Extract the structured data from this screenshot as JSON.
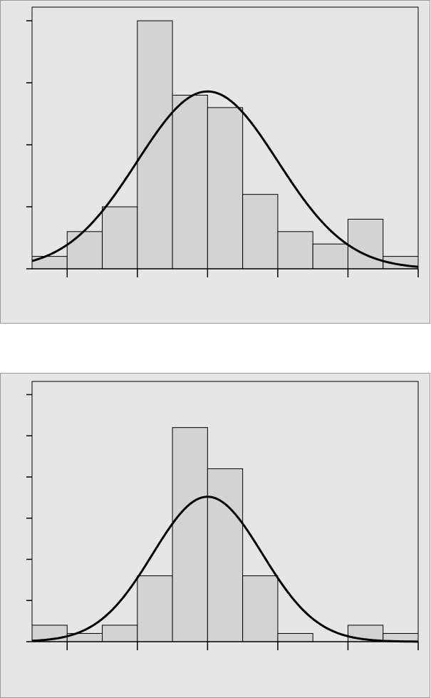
{
  "chart_data": [
    {
      "type": "histogram",
      "bins": [
        0,
        1,
        2,
        3,
        4,
        5,
        6,
        7,
        8,
        9,
        10,
        11
      ],
      "counts": [
        1,
        3,
        5,
        20,
        14,
        13,
        6,
        3,
        2,
        4,
        1
      ],
      "xlim": [
        0,
        11
      ],
      "xticks": [
        1,
        3,
        5,
        7,
        9,
        11
      ],
      "ylim": [
        0,
        21.1
      ],
      "yticks": [
        0,
        5,
        10,
        15,
        20
      ],
      "color": "#d3d3d3",
      "curve": {
        "mean": 5,
        "sd": 2,
        "peak": 14.3
      }
    },
    {
      "type": "histogram",
      "bins": [
        0,
        1,
        2,
        3,
        4,
        5,
        6,
        7,
        8,
        9,
        10,
        11
      ],
      "counts": [
        2,
        1,
        2,
        8,
        26,
        21,
        8,
        1,
        0,
        2,
        1
      ],
      "xlim": [
        0,
        11
      ],
      "xticks": [
        1,
        3,
        5,
        7,
        9,
        11
      ],
      "ylim": [
        0,
        31.6
      ],
      "yticks": [
        0,
        5,
        10,
        15,
        20,
        25,
        30
      ],
      "color": "#d3d3d3",
      "curve": {
        "mean": 5,
        "sd": 1.56,
        "peak": 17.6
      }
    }
  ]
}
